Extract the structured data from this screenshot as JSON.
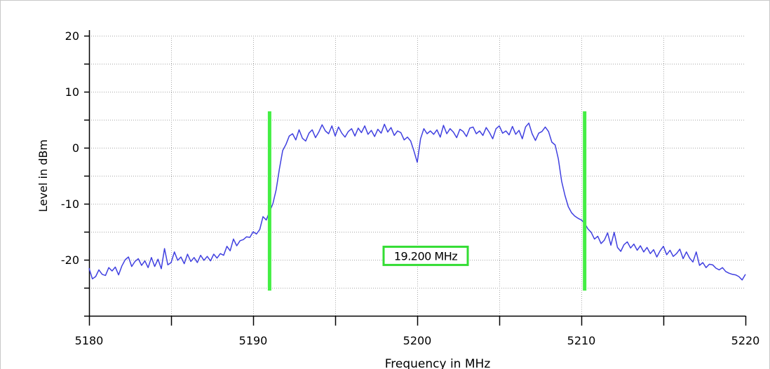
{
  "chart_data": {
    "type": "line",
    "title": "",
    "xlabel": "Frequency in MHz",
    "ylabel": "Level in dBm",
    "xlim": [
      5180,
      5220
    ],
    "ylim": [
      -30,
      20
    ],
    "x_ticks": [
      5180,
      5190,
      5200,
      5210,
      5220
    ],
    "y_ticks": [
      -20,
      -10,
      0,
      10,
      20
    ],
    "grid": true,
    "series": [
      {
        "color": "#4040e0",
        "points": [
          [
            5180.0,
            -21.5
          ],
          [
            5180.2,
            -23.4
          ],
          [
            5180.4,
            -23.0
          ],
          [
            5180.6,
            -21.8
          ],
          [
            5180.8,
            -22.6
          ],
          [
            5181.0,
            -22.8
          ],
          [
            5181.2,
            -21.4
          ],
          [
            5181.4,
            -22.0
          ],
          [
            5181.6,
            -21.3
          ],
          [
            5181.8,
            -22.7
          ],
          [
            5182.0,
            -21.1
          ],
          [
            5182.2,
            -20.0
          ],
          [
            5182.4,
            -19.5
          ],
          [
            5182.6,
            -21.2
          ],
          [
            5182.8,
            -20.3
          ],
          [
            5183.0,
            -19.8
          ],
          [
            5183.2,
            -21.0
          ],
          [
            5183.4,
            -20.2
          ],
          [
            5183.6,
            -21.4
          ],
          [
            5183.8,
            -19.6
          ],
          [
            5184.0,
            -21.2
          ],
          [
            5184.2,
            -19.9
          ],
          [
            5184.4,
            -21.6
          ],
          [
            5184.6,
            -18.0
          ],
          [
            5184.8,
            -20.9
          ],
          [
            5185.0,
            -20.5
          ],
          [
            5185.2,
            -18.6
          ],
          [
            5185.4,
            -20.1
          ],
          [
            5185.6,
            -19.5
          ],
          [
            5185.8,
            -20.7
          ],
          [
            5186.0,
            -19.0
          ],
          [
            5186.2,
            -20.3
          ],
          [
            5186.4,
            -19.6
          ],
          [
            5186.6,
            -20.5
          ],
          [
            5186.8,
            -19.2
          ],
          [
            5187.0,
            -20.1
          ],
          [
            5187.2,
            -19.4
          ],
          [
            5187.4,
            -20.2
          ],
          [
            5187.6,
            -19.0
          ],
          [
            5187.8,
            -19.7
          ],
          [
            5188.0,
            -18.9
          ],
          [
            5188.2,
            -19.2
          ],
          [
            5188.4,
            -17.6
          ],
          [
            5188.6,
            -18.4
          ],
          [
            5188.8,
            -16.3
          ],
          [
            5189.0,
            -17.5
          ],
          [
            5189.2,
            -16.6
          ],
          [
            5189.4,
            -16.4
          ],
          [
            5189.6,
            -15.9
          ],
          [
            5189.8,
            -16.0
          ],
          [
            5190.0,
            -15.0
          ],
          [
            5190.2,
            -15.4
          ],
          [
            5190.4,
            -14.6
          ],
          [
            5190.6,
            -12.3
          ],
          [
            5190.8,
            -12.9
          ],
          [
            5191.0,
            -11.4
          ],
          [
            5191.2,
            -10.0
          ],
          [
            5191.4,
            -7.5
          ],
          [
            5191.6,
            -3.8
          ],
          [
            5191.8,
            -0.5
          ],
          [
            5192.0,
            0.6
          ],
          [
            5192.2,
            2.1
          ],
          [
            5192.4,
            2.5
          ],
          [
            5192.6,
            1.4
          ],
          [
            5192.8,
            3.2
          ],
          [
            5193.0,
            1.7
          ],
          [
            5193.2,
            1.2
          ],
          [
            5193.4,
            2.6
          ],
          [
            5193.6,
            3.2
          ],
          [
            5193.8,
            1.8
          ],
          [
            5194.0,
            2.8
          ],
          [
            5194.2,
            4.1
          ],
          [
            5194.4,
            3.0
          ],
          [
            5194.6,
            2.5
          ],
          [
            5194.8,
            3.9
          ],
          [
            5195.0,
            2.1
          ],
          [
            5195.2,
            3.7
          ],
          [
            5195.4,
            2.6
          ],
          [
            5195.6,
            1.9
          ],
          [
            5195.8,
            2.9
          ],
          [
            5196.0,
            3.4
          ],
          [
            5196.2,
            2.1
          ],
          [
            5196.4,
            3.5
          ],
          [
            5196.6,
            2.7
          ],
          [
            5196.8,
            3.9
          ],
          [
            5197.0,
            2.4
          ],
          [
            5197.2,
            3.1
          ],
          [
            5197.4,
            2.0
          ],
          [
            5197.6,
            3.3
          ],
          [
            5197.8,
            2.6
          ],
          [
            5198.0,
            4.2
          ],
          [
            5198.2,
            2.8
          ],
          [
            5198.4,
            3.6
          ],
          [
            5198.6,
            2.2
          ],
          [
            5198.8,
            3.0
          ],
          [
            5199.0,
            2.7
          ],
          [
            5199.2,
            1.4
          ],
          [
            5199.4,
            1.9
          ],
          [
            5199.6,
            1.2
          ],
          [
            5199.8,
            -0.6
          ],
          [
            5200.0,
            -2.6
          ],
          [
            5200.2,
            1.6
          ],
          [
            5200.4,
            3.4
          ],
          [
            5200.6,
            2.5
          ],
          [
            5200.8,
            3.0
          ],
          [
            5201.0,
            2.4
          ],
          [
            5201.2,
            3.2
          ],
          [
            5201.4,
            1.9
          ],
          [
            5201.6,
            4.0
          ],
          [
            5201.8,
            2.5
          ],
          [
            5202.0,
            3.4
          ],
          [
            5202.2,
            2.8
          ],
          [
            5202.4,
            1.8
          ],
          [
            5202.6,
            3.3
          ],
          [
            5202.8,
            2.9
          ],
          [
            5203.0,
            2.0
          ],
          [
            5203.2,
            3.5
          ],
          [
            5203.4,
            3.7
          ],
          [
            5203.6,
            2.5
          ],
          [
            5203.8,
            3.0
          ],
          [
            5204.0,
            2.2
          ],
          [
            5204.2,
            3.6
          ],
          [
            5204.4,
            2.7
          ],
          [
            5204.6,
            1.6
          ],
          [
            5204.8,
            3.4
          ],
          [
            5205.0,
            3.9
          ],
          [
            5205.2,
            2.6
          ],
          [
            5205.4,
            3.0
          ],
          [
            5205.6,
            2.3
          ],
          [
            5205.8,
            3.8
          ],
          [
            5206.0,
            2.4
          ],
          [
            5206.2,
            3.1
          ],
          [
            5206.4,
            1.6
          ],
          [
            5206.6,
            3.7
          ],
          [
            5206.8,
            4.4
          ],
          [
            5207.0,
            2.5
          ],
          [
            5207.2,
            1.3
          ],
          [
            5207.4,
            2.6
          ],
          [
            5207.6,
            2.9
          ],
          [
            5207.8,
            3.7
          ],
          [
            5208.0,
            2.9
          ],
          [
            5208.2,
            1.0
          ],
          [
            5208.4,
            0.5
          ],
          [
            5208.6,
            -2.0
          ],
          [
            5208.8,
            -6.0
          ],
          [
            5209.0,
            -8.5
          ],
          [
            5209.2,
            -10.5
          ],
          [
            5209.4,
            -11.6
          ],
          [
            5209.6,
            -12.2
          ],
          [
            5209.8,
            -12.6
          ],
          [
            5210.0,
            -12.9
          ],
          [
            5210.2,
            -13.5
          ],
          [
            5210.4,
            -14.5
          ],
          [
            5210.6,
            -15.1
          ],
          [
            5210.8,
            -16.3
          ],
          [
            5211.0,
            -15.8
          ],
          [
            5211.2,
            -17.1
          ],
          [
            5211.4,
            -16.5
          ],
          [
            5211.6,
            -15.2
          ],
          [
            5211.8,
            -17.4
          ],
          [
            5212.0,
            -15.1
          ],
          [
            5212.2,
            -17.8
          ],
          [
            5212.4,
            -18.5
          ],
          [
            5212.6,
            -17.3
          ],
          [
            5212.8,
            -16.8
          ],
          [
            5213.0,
            -17.9
          ],
          [
            5213.2,
            -17.2
          ],
          [
            5213.4,
            -18.3
          ],
          [
            5213.6,
            -17.5
          ],
          [
            5213.8,
            -18.6
          ],
          [
            5214.0,
            -17.8
          ],
          [
            5214.2,
            -18.9
          ],
          [
            5214.4,
            -18.2
          ],
          [
            5214.6,
            -19.5
          ],
          [
            5214.8,
            -18.4
          ],
          [
            5215.0,
            -17.6
          ],
          [
            5215.2,
            -19.1
          ],
          [
            5215.4,
            -18.3
          ],
          [
            5215.6,
            -19.4
          ],
          [
            5215.8,
            -18.9
          ],
          [
            5216.0,
            -18.1
          ],
          [
            5216.2,
            -19.8
          ],
          [
            5216.4,
            -18.6
          ],
          [
            5216.6,
            -19.7
          ],
          [
            5216.8,
            -20.4
          ],
          [
            5217.0,
            -18.6
          ],
          [
            5217.2,
            -21.0
          ],
          [
            5217.4,
            -20.5
          ],
          [
            5217.6,
            -21.4
          ],
          [
            5217.8,
            -20.8
          ],
          [
            5218.0,
            -20.9
          ],
          [
            5218.2,
            -21.5
          ],
          [
            5218.4,
            -21.8
          ],
          [
            5218.6,
            -21.4
          ],
          [
            5218.8,
            -22.1
          ],
          [
            5219.0,
            -22.4
          ],
          [
            5219.2,
            -22.6
          ],
          [
            5219.4,
            -22.7
          ],
          [
            5219.6,
            -23.0
          ],
          [
            5219.8,
            -23.6
          ],
          [
            5220.0,
            -22.6
          ]
        ]
      }
    ],
    "markers": [
      {
        "x": 5191.0,
        "y_range": [
          -25.5,
          6.5
        ],
        "color": "#44ee44"
      },
      {
        "x": 5210.2,
        "y_range": [
          -25.5,
          6.5
        ],
        "color": "#44ee44"
      }
    ],
    "annotations": [
      {
        "text": "19.200 MHz",
        "x": 5200.0,
        "y": -19.3,
        "border": "#33dd33"
      }
    ]
  }
}
